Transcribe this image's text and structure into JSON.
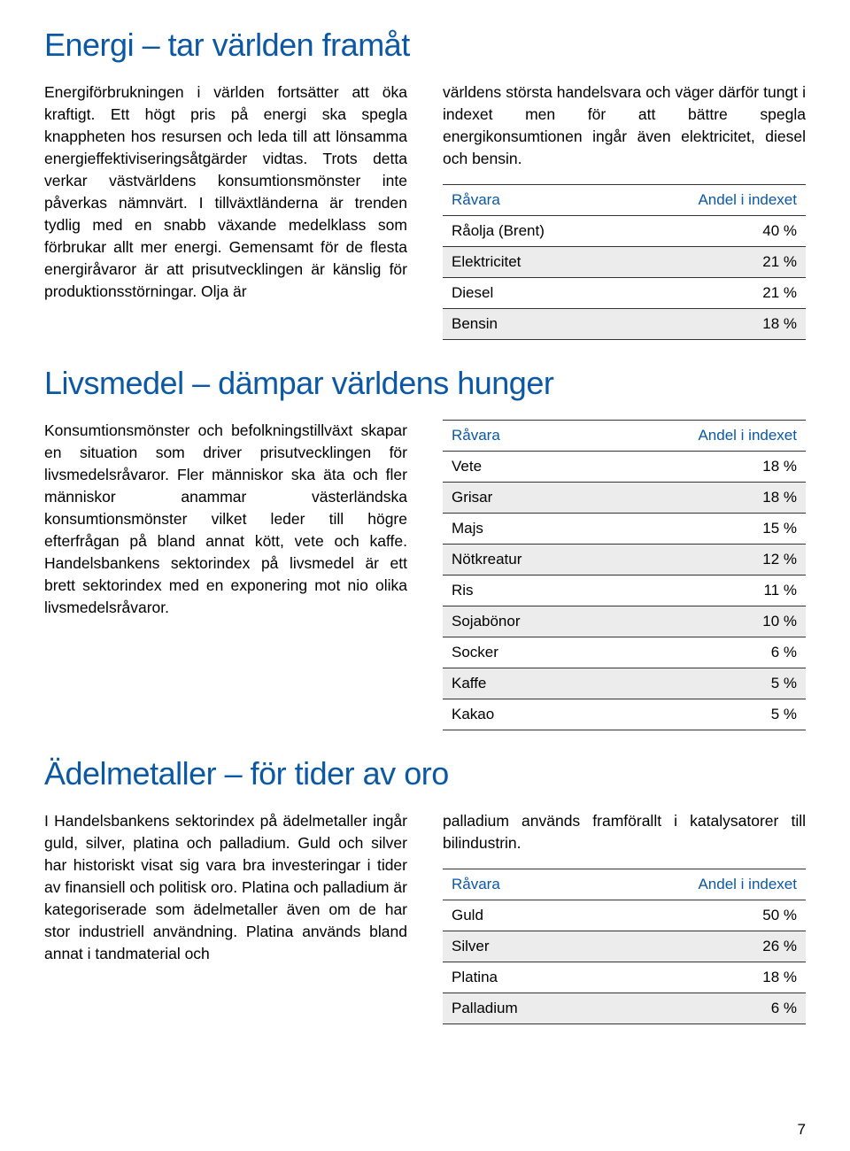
{
  "colors": {
    "heading": "#0b58a4",
    "table_header": "#0b58a4",
    "body": "#000000",
    "row_alt": "#ececec",
    "rule": "#333333"
  },
  "page_number": "7",
  "sections": [
    {
      "title": "Energi – tar världen framåt",
      "left_text": "Energiförbrukningen i världen fortsätter att öka kraftigt. Ett högt pris på energi ska spegla knappheten hos resursen och leda till att lönsamma energieffektiviserings­åtgärder vidtas. Trots detta verkar västvärl­dens konsumtionsmönster inte påverkas nämnvärt. I tillväxtländerna är trenden tydlig med en snabb växande medelklass som förbrukar allt mer energi. Gemensamt för de flesta energiråvaror är att prisutvecklingen är känslig för produktionsstörningar. Olja är",
      "right_text": "världens största handelsvara och väger där­för tungt i indexet men för att bättre spegla energikonsumtionen ingår även elektricitet, diesel och bensin.",
      "table": {
        "head_left": "Råvara",
        "head_right": "Andel i indexet",
        "rows": [
          {
            "name": "Råolja (Brent)",
            "value": "40 %"
          },
          {
            "name": "Elektricitet",
            "value": "21 %"
          },
          {
            "name": "Diesel",
            "value": "21 %"
          },
          {
            "name": "Bensin",
            "value": "18 %"
          }
        ]
      }
    },
    {
      "title": "Livsmedel – dämpar världens hunger",
      "left_text": "Konsumtionsmönster och befolkningstillväxt skapar en situation som driver prisutveck­lingen för livsmedelsråvaror. Fler människor ska äta och fler människor anammar väster­ländska konsumtionsmönster vilket leder till högre efterfrågan på bland annat kött, vete och kaffe. Handelsbankens sektorindex på livsmedel är ett brett sektorindex med en exponering mot nio olika livsmedelsråvaror.",
      "right_text": "",
      "table": {
        "head_left": "Råvara",
        "head_right": "Andel i indexet",
        "rows": [
          {
            "name": "Vete",
            "value": "18 %"
          },
          {
            "name": "Grisar",
            "value": "18 %"
          },
          {
            "name": "Majs",
            "value": "15 %"
          },
          {
            "name": "Nötkreatur",
            "value": "12 %"
          },
          {
            "name": "Ris",
            "value": "11 %"
          },
          {
            "name": "Sojabönor",
            "value": "10 %"
          },
          {
            "name": "Socker",
            "value": "6 %"
          },
          {
            "name": "Kaffe",
            "value": "5 %"
          },
          {
            "name": "Kakao",
            "value": "5 %"
          }
        ]
      }
    },
    {
      "title": "Ädelmetaller – för tider av oro",
      "left_text": "I Handelsbankens sektorindex på ädel­metaller ingår guld, silver, platina och pall­adium. Guld och silver har historiskt visat sig vara bra investeringar i tider av finansiell och politisk oro. Platina och palladium är kategoriserade som ädelmetaller även om de har stor industriell användning. Platina används bland annat i tandmaterial och",
      "right_text": "palladium används framförallt i katalysatorer till bilindustrin.",
      "table": {
        "head_left": "Råvara",
        "head_right": "Andel i indexet",
        "rows": [
          {
            "name": "Guld",
            "value": "50 %"
          },
          {
            "name": "Silver",
            "value": "26 %"
          },
          {
            "name": "Platina",
            "value": "18 %"
          },
          {
            "name": "Palladium",
            "value": "6 %"
          }
        ]
      }
    }
  ]
}
